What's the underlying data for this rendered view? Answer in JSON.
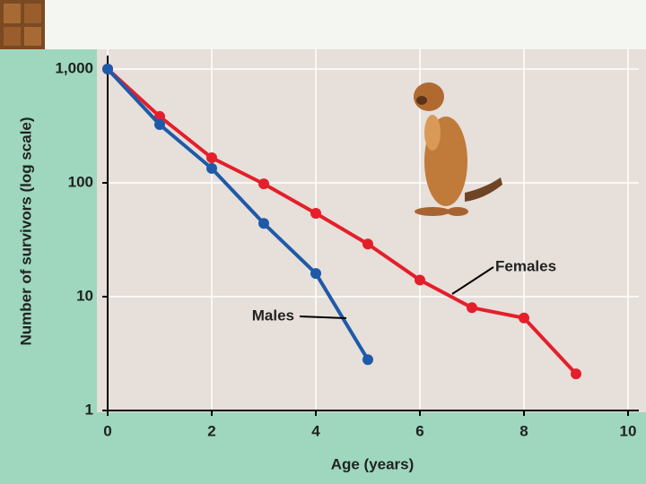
{
  "chart_data": {
    "type": "line",
    "x_label": "Age (years)",
    "y_label": "Number of survivors (log scale)",
    "x": [
      0,
      1,
      2,
      3,
      4,
      5,
      6,
      7,
      8,
      9
    ],
    "series": [
      {
        "name": "Females",
        "color": "#e41f2b",
        "values": [
          1000,
          383,
          166,
          98,
          54,
          29,
          14,
          8,
          6.5,
          2.1
        ]
      },
      {
        "name": "Males",
        "color": "#1f5aa8",
        "values": [
          1000,
          325,
          134,
          44,
          16,
          2.8,
          null,
          null,
          null,
          null
        ]
      }
    ],
    "xlim": [
      0,
      10
    ],
    "xticks": [
      0,
      2,
      4,
      6,
      8,
      10
    ],
    "ylim": [
      1,
      1000
    ],
    "yticks": [
      1,
      10,
      100,
      {
        "value": 1000,
        "label": "1,000"
      }
    ],
    "yscale": "log",
    "grid": true
  }
}
